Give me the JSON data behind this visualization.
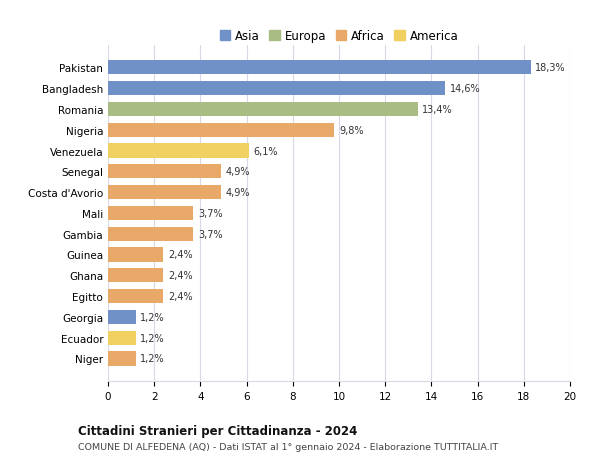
{
  "countries": [
    "Pakistan",
    "Bangladesh",
    "Romania",
    "Nigeria",
    "Venezuela",
    "Senegal",
    "Costa d'Avorio",
    "Mali",
    "Gambia",
    "Guinea",
    "Ghana",
    "Egitto",
    "Georgia",
    "Ecuador",
    "Niger"
  ],
  "values": [
    18.3,
    14.6,
    13.4,
    9.8,
    6.1,
    4.9,
    4.9,
    3.7,
    3.7,
    2.4,
    2.4,
    2.4,
    1.2,
    1.2,
    1.2
  ],
  "labels": [
    "18,3%",
    "14,6%",
    "13,4%",
    "9,8%",
    "6,1%",
    "4,9%",
    "4,9%",
    "3,7%",
    "3,7%",
    "2,4%",
    "2,4%",
    "2,4%",
    "1,2%",
    "1,2%",
    "1,2%"
  ],
  "continents": [
    "Asia",
    "Asia",
    "Europa",
    "Africa",
    "America",
    "Africa",
    "Africa",
    "Africa",
    "Africa",
    "Africa",
    "Africa",
    "Africa",
    "Asia",
    "America",
    "Africa"
  ],
  "colors": {
    "Asia": "#7090c8",
    "Europa": "#a8bc84",
    "Africa": "#e8a868",
    "America": "#f0d060"
  },
  "legend_order": [
    "Asia",
    "Europa",
    "Africa",
    "America"
  ],
  "xlim": [
    0,
    20
  ],
  "xticks": [
    0,
    2,
    4,
    6,
    8,
    10,
    12,
    14,
    16,
    18,
    20
  ],
  "title": "Cittadini Stranieri per Cittadinanza - 2024",
  "subtitle": "COMUNE DI ALFEDENA (AQ) - Dati ISTAT al 1° gennaio 2024 - Elaborazione TUTTITALIA.IT",
  "background_color": "#ffffff",
  "grid_color": "#d8d8e8"
}
